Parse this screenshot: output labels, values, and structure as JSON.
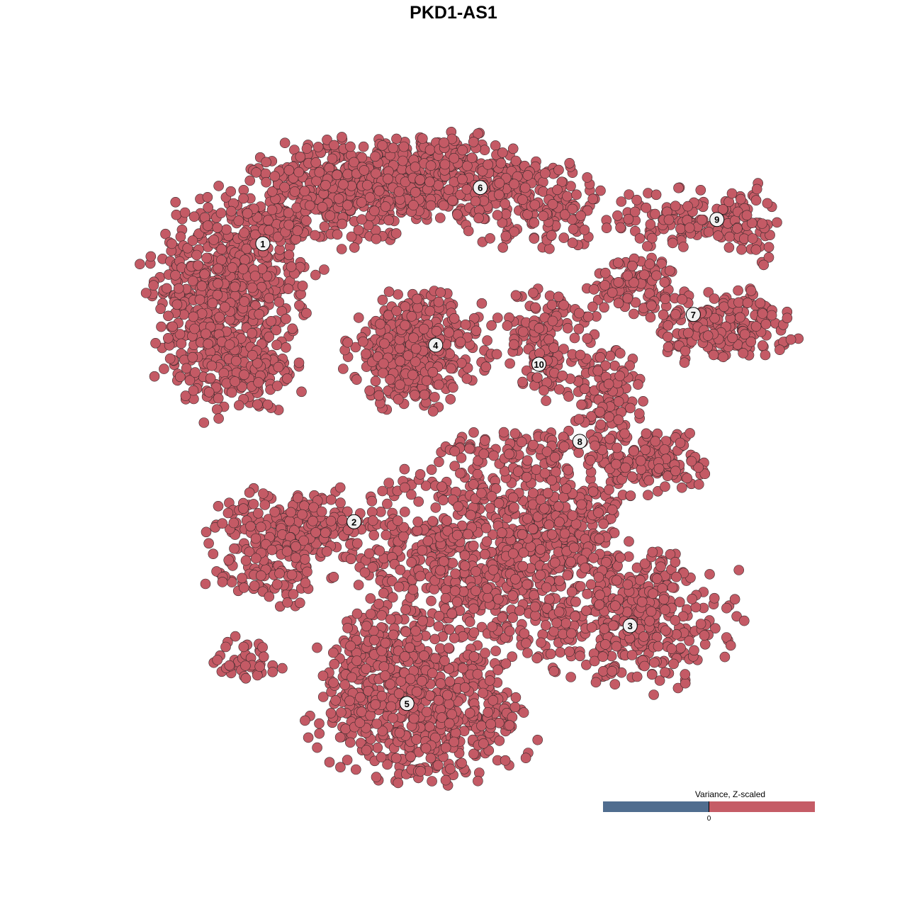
{
  "chart_data": {
    "type": "scatter",
    "title": "PKD1-AS1",
    "xlabel": "",
    "ylabel": "",
    "xlim": [
      -50,
      50
    ],
    "ylim": [
      -50,
      50
    ],
    "grid": false,
    "axes_visible": false,
    "point_color": "#c45a65",
    "point_stroke": "#3b2a2c",
    "clusters": [
      {
        "label": "1",
        "center": [
          -29.9,
          32.9
        ],
        "regions": [
          [
            -34.4,
            27.8,
            6.1,
            6.7,
            500
          ],
          [
            -37.8,
            17.8,
            4.4,
            5.6,
            150
          ],
          [
            -32.2,
            12.2,
            4.4,
            2.8,
            100
          ]
        ]
      },
      {
        "label": "2",
        "center": [
          -15.6,
          -10.7
        ],
        "regions": [
          [
            -24.4,
            -11.1,
            6.7,
            2.8,
            200
          ],
          [
            -28.9,
            -18.9,
            4.4,
            2.8,
            100
          ],
          [
            -32.2,
            -32.2,
            3.3,
            1.7,
            40
          ]
        ]
      },
      {
        "label": "3",
        "center": [
          27.7,
          -27.0
        ],
        "regions": [
          [
            3.3,
            -16.7,
            8.9,
            7.8,
            700
          ],
          [
            17.8,
            -11.1,
            4.4,
            4.4,
            200
          ],
          [
            27.8,
            -25.6,
            7.8,
            5.6,
            400
          ]
        ]
      },
      {
        "label": "4",
        "center": [
          -2.8,
          17.0
        ],
        "regions": [
          [
            -6.1,
            16.1,
            5.0,
            4.4,
            400
          ]
        ]
      },
      {
        "label": "5",
        "center": [
          -7.3,
          -39.2
        ],
        "regions": [
          [
            -4.4,
            -41.1,
            8.3,
            5.0,
            500
          ],
          [
            -12.2,
            -32.2,
            4.4,
            4.4,
            150
          ]
        ]
      },
      {
        "label": "6",
        "center": [
          4.2,
          41.7
        ],
        "regions": [
          [
            -17.8,
            41.1,
            6.7,
            3.9,
            400
          ],
          [
            -2.2,
            43.3,
            7.8,
            3.3,
            350
          ],
          [
            13.3,
            38.9,
            5.6,
            3.3,
            150
          ]
        ]
      },
      {
        "label": "7",
        "center": [
          37.6,
          21.8
        ],
        "regions": [
          [
            28.9,
            26.7,
            3.9,
            2.2,
            100
          ],
          [
            42.2,
            20.0,
            5.6,
            2.8,
            200
          ]
        ]
      },
      {
        "label": "8",
        "center": [
          19.8,
          1.9
        ],
        "regions": [
          [
            23.3,
            8.9,
            2.8,
            4.4,
            120
          ],
          [
            31.1,
            -1.1,
            4.4,
            2.8,
            150
          ],
          [
            12.2,
            0.0,
            6.7,
            2.2,
            100
          ]
        ]
      },
      {
        "label": "9",
        "center": [
          41.3,
          36.7
        ],
        "regions": [
          [
            35.6,
            36.7,
            5.6,
            2.2,
            100
          ],
          [
            45.6,
            35.6,
            2.2,
            3.3,
            60
          ]
        ]
      },
      {
        "label": "10",
        "center": [
          13.4,
          14.0
        ],
        "regions": [
          [
            13.3,
            20.0,
            4.4,
            3.3,
            100
          ],
          [
            13.9,
            14.4,
            1.7,
            2.8,
            40
          ]
        ]
      }
    ],
    "legend": {
      "title": "Variance, Z-scaled",
      "tick": "0",
      "low_color": "#506d8f",
      "high_color": "#c55c66",
      "placement": "bottom-right"
    }
  }
}
